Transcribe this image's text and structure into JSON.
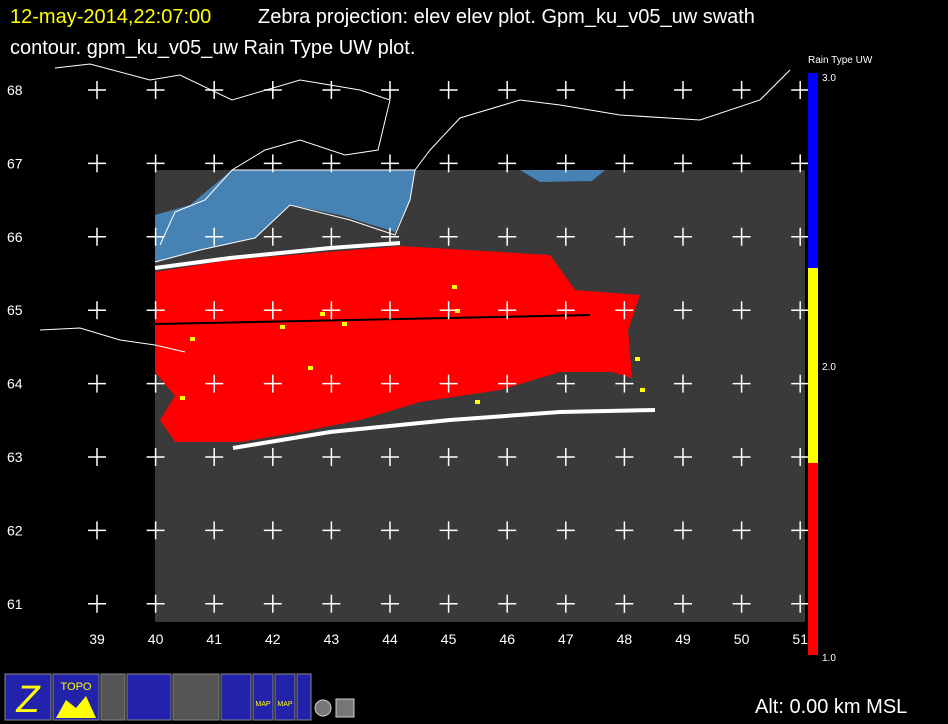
{
  "header": {
    "time": "12-may-2014,22:07:00",
    "line1": "Zebra projection: elev elev  plot.  Gpm_ku_v05_uw swath",
    "line2": "contour.  gpm_ku_v05_uw Rain Type UW  plot."
  },
  "map": {
    "x_labels": [
      "39",
      "40",
      "41",
      "42",
      "43",
      "44",
      "45",
      "46",
      "47",
      "48",
      "49",
      "50",
      "51"
    ],
    "y_labels": [
      "68",
      "67",
      "66",
      "65",
      "64",
      "63",
      "62",
      "61"
    ]
  },
  "colorbar": {
    "title": "Rain Type UW",
    "labels": [
      "3.0",
      "2.0",
      "1.0"
    ]
  },
  "toolbar": {
    "icons": [
      "Z",
      "TOPO",
      "MAP",
      "MAP"
    ]
  },
  "status": "Alt: 0.00 km MSL"
}
